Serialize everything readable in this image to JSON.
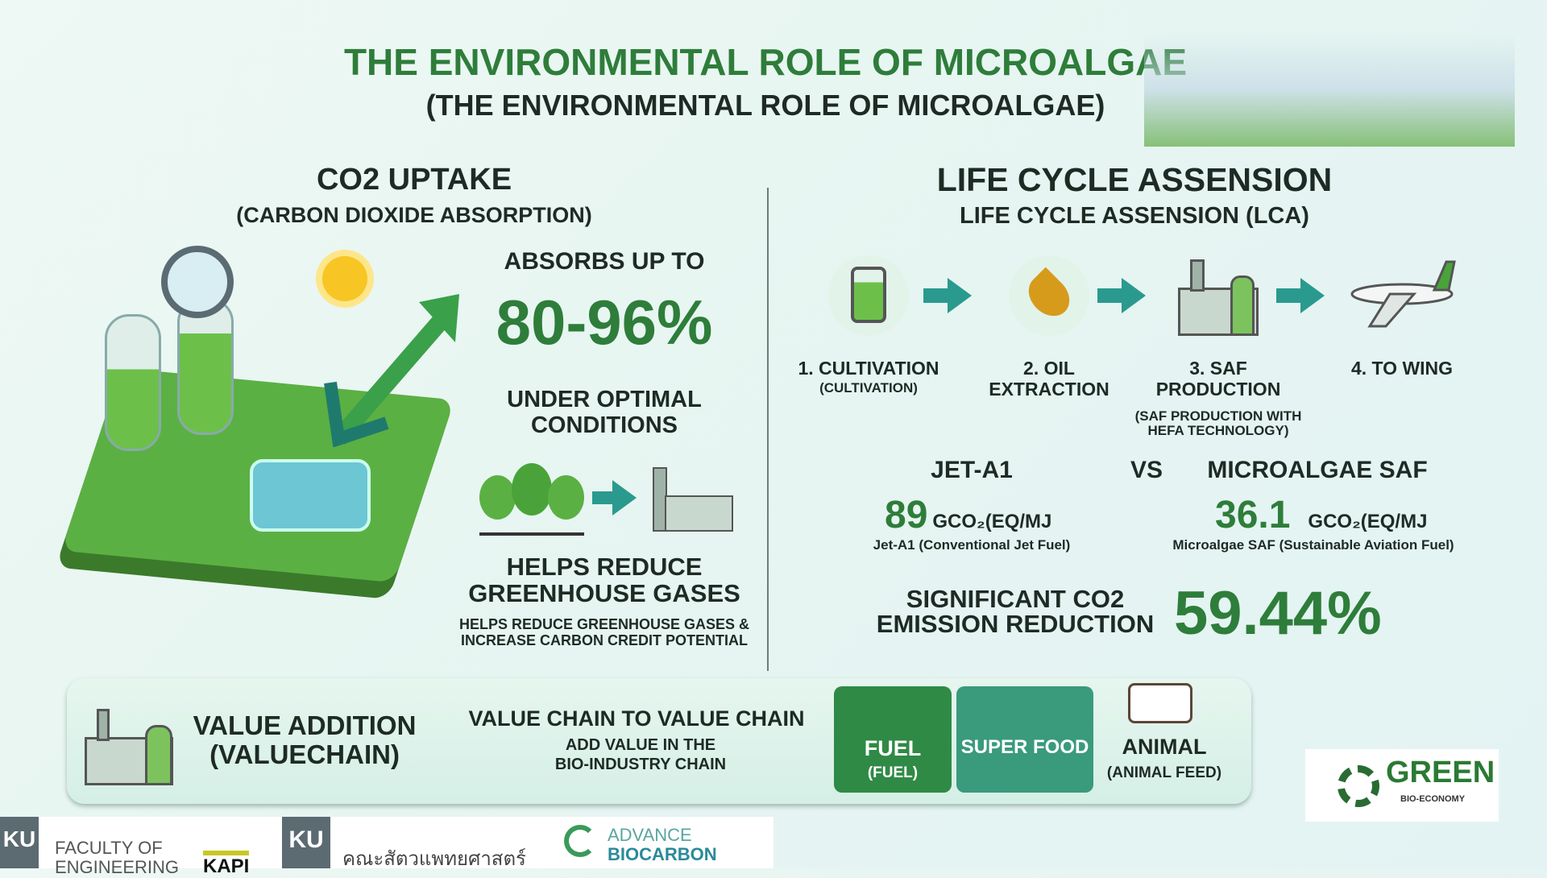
{
  "header": {
    "title": "THE ENVIRONMENTAL ROLE OF MICROALGAE",
    "subtitle": "(THE ENVIRONMENTAL ROLE OF MICROALGAE)"
  },
  "co2": {
    "title": "CO2 UPTAKE",
    "subtitle": "(CARBON DIOXIDE ABSORPTION)",
    "absorbs": "ABSORBS UP TO",
    "value": "80-96%",
    "condition_1": "UNDER OPTIMAL",
    "condition_2": "CONDITIONS",
    "reduce_1": "HELPS REDUCE",
    "reduce_2": "GREENHOUSE GASES",
    "note_1": "HELPS REDUCE GREENHOUSE GASES &",
    "note_2": "INCREASE CARBON CREDIT POTENTIAL"
  },
  "lca": {
    "title": "LIFE CYCLE ASSENSION",
    "subtitle": "LIFE CYCLE ASSENSION (LCA)",
    "steps": [
      {
        "label_1": "1. CULTIVATION",
        "label_2": "(CULTIVATION)",
        "icon": "bioreactor-icon"
      },
      {
        "label_1": "2. OIL",
        "label_2": "EXTRACTION",
        "icon": "oil-drop-icon"
      },
      {
        "label_1": "3. SAF",
        "label_2": "PRODUCTION",
        "note_1": "(SAF PRODUCTION WITH",
        "note_2": "HEFA TECHNOLOGY)",
        "icon": "refinery-icon"
      },
      {
        "label_1": "4. TO WING",
        "label_2": "",
        "icon": "airplane-icon"
      }
    ],
    "compare": {
      "left_title": "JET-A1",
      "vs": "VS",
      "right_title": "MICROALGAE SAF",
      "left_value": "89",
      "right_value": "36.1",
      "unit": "GCO₂(EQ/MJ",
      "left_note": "Jet-A1 (Conventional Jet Fuel)",
      "right_note": "Microalgae SAF (Sustainable Aviation Fuel)"
    },
    "reduction_1": "SIGNIFICANT CO2",
    "reduction_2": "EMISSION REDUCTION",
    "reduction_value": "59.44%"
  },
  "value_chain": {
    "title_1": "VALUE ADDITION",
    "title_2": "(VALUECHAIN)",
    "heading": "VALUE CHAIN TO VALUE CHAIN",
    "sub_1": "ADD VALUE IN THE",
    "sub_2": "BIO-INDUSTRY CHAIN",
    "tiles": [
      {
        "label": "FUEL",
        "sub": "(FUEL)"
      },
      {
        "label": "SUPER FOOD",
        "sub": ""
      },
      {
        "label": "ANIMAL",
        "sub": "(ANIMAL FEED)"
      }
    ]
  },
  "logos": {
    "green": "GREEN",
    "green_sub": "BIO-ECONOMY",
    "ku": "KU",
    "faculty_1": "FACULTY OF",
    "faculty_2": "ENGINEERING",
    "kapi": "KAPI",
    "vet": "คณะสัตวแพทยศาสตร์",
    "advance_1": "ADVANCE",
    "advance_2": "BIOCARBON"
  },
  "colors": {
    "primary_green": "#2e7d3a",
    "teal": "#2a9a8e",
    "fuel_tile": "#2f8a45",
    "food_tile": "#3a9a7c"
  }
}
